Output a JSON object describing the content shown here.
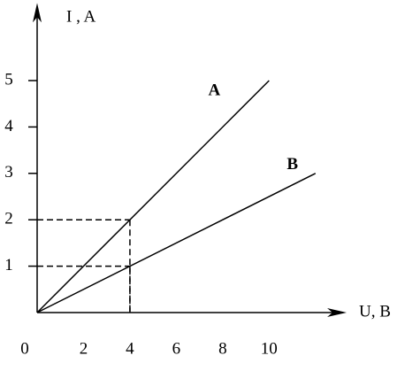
{
  "chart_data": {
    "type": "line",
    "x_label": "U, B",
    "y_label": "I , A",
    "series": [
      {
        "name": "A",
        "color": "#000000",
        "x": [
          0,
          10
        ],
        "values": [
          0,
          5
        ]
      },
      {
        "name": "B",
        "color": "#000000",
        "x": [
          0,
          12
        ],
        "values": [
          0,
          3
        ]
      }
    ],
    "guide_points": [
      {
        "x": 4,
        "y": 2
      },
      {
        "x": 4,
        "y": 1
      }
    ],
    "xlim": [
      0,
      13
    ],
    "ylim": [
      0,
      6.5
    ],
    "xticks": [
      0,
      2,
      4,
      6,
      8,
      10
    ],
    "yticks": [
      1,
      2,
      3,
      4,
      5
    ],
    "grid": false
  }
}
